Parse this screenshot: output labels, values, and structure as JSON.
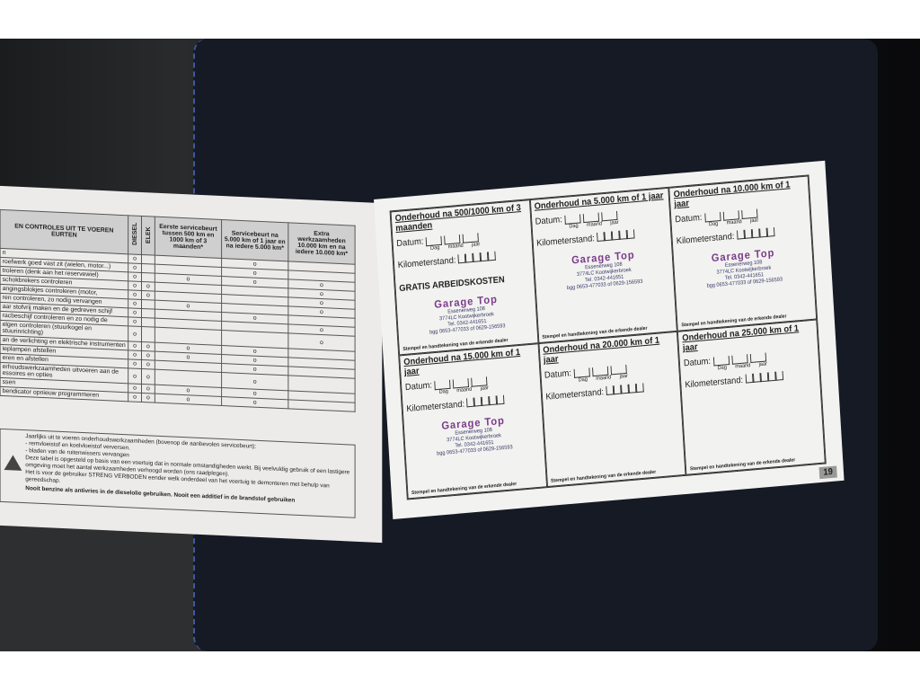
{
  "left_page": {
    "table": {
      "header": [
        "EN CONTROLES UIT TE VOEREN EURTEN",
        "DIESEL",
        "ELEK",
        "Eerste servicebeurt tussen 500 km en 1000 km of 3 maanden*",
        "Servicebeurt na 5.000 km of 1 jaar en na iedere 5.000 km*",
        "Extra werkzaamheden 10.000 km en na iedere 10.000 km*"
      ],
      "rows": [
        {
          "label": "n",
          "marks": [
            "o",
            null,
            null,
            "o",
            null
          ]
        },
        {
          "label": "roefwerk goed vast zit (wielen, motor...)",
          "marks": [
            "o",
            null,
            null,
            "o",
            null
          ]
        },
        {
          "label": "troleren (denk aan het reservewiel)",
          "marks": [
            "o",
            null,
            "o",
            "o",
            "o"
          ]
        },
        {
          "label": "schokbrekers controleren",
          "marks": [
            "o",
            "o",
            null,
            null,
            "o"
          ]
        },
        {
          "label": "angingsblokjes controleren (motor,",
          "marks": [
            "o",
            "o",
            null,
            null,
            "o"
          ]
        },
        {
          "label": "ren controleren, zo nodig vervangen",
          "marks": [
            "o",
            null,
            "o",
            null,
            "o"
          ]
        },
        {
          "label": "aar stofvrij maken en de gedreven schijf",
          "marks": [
            "o",
            null,
            null,
            "o",
            null
          ]
        },
        {
          "label": "racbeschijf controleren en zo nodig de",
          "marks": [
            "o",
            null,
            null,
            null,
            "o"
          ]
        },
        {
          "label": "elgen controleren (stuurkogel en stuurinrichting)",
          "marks": [
            "o",
            null,
            null,
            null,
            "o"
          ]
        },
        {
          "label": "an de verlichting en elektrische instrumenten",
          "marks": [
            "o",
            "o",
            "o",
            "o",
            null
          ]
        },
        {
          "label": "ieplampen afstellen",
          "marks": [
            "o",
            "o",
            "o",
            "o",
            null
          ]
        },
        {
          "label": "eren en afstellen",
          "marks": [
            "o",
            "o",
            null,
            "o",
            null
          ]
        },
        {
          "label": "erhoudswerkzaamheden uitvoeren aan de essoires en opties",
          "marks": [
            "o",
            "o",
            null,
            "o",
            null
          ]
        },
        {
          "label": "ssen",
          "marks": [
            "o",
            "o",
            "o",
            "o",
            null
          ]
        },
        {
          "label": "bendicator opnieuw programmeren",
          "marks": [
            "o",
            "o",
            "o",
            "o",
            null
          ]
        }
      ]
    },
    "notice": {
      "lines": [
        "Jaarlijks uit te voeren onderhoudswerkzaamheden (bovenop de aanbevolen servicebeurt):",
        "- remvloeistof en koelvloeistof verversen.",
        "- bladen van de ruitenwissers vervangen",
        "Deze tabel is opgesteld op basis van een voertuig dat in normale omstandigheden werkt. Bij veelvuldig gebruik of een lastigere omgeving moet het aantal werkzaamheden verhoogd worden (ons raadplegen).",
        "Het is voor de gebruiker STRENG VERBODEN eender welk onderdeel van het voertuig te demonteren met behulp van gereedschap."
      ],
      "footer": "Nooit benzine als antivries in de dieselolie gebruiken. Nooit een additief in de brandstof gebruiken"
    }
  },
  "right_page": {
    "date_label": "Datum:",
    "date_parts": [
      "Dag",
      "maand",
      "jaar"
    ],
    "km_label": "Kilometerstand:",
    "signature": "Stempel en handtekening van de erkende dealer",
    "stamp": {
      "name": "Garage Top",
      "lines": [
        "Essenerweg 108",
        "3774LC Kootwijkerbroek",
        "Tel. 0342-441651",
        "bgg 0653-477033 of 0629-156593"
      ]
    },
    "entries": [
      {
        "title": "Onderhoud na 500/1000 km of 3 maanden",
        "extra": "GRATIS ARBEIDSKOSTEN",
        "stamped": true
      },
      {
        "title": "Onderhoud na 5.000 km of 1 jaar",
        "stamped": true
      },
      {
        "title": "Onderhoud na 10.000 km of 1 jaar",
        "stamped": true
      },
      {
        "title": "Onderhoud na 15.000 km of 1 jaar",
        "stamped": true
      },
      {
        "title": "Onderhoud na 20.000 km of 1 jaar",
        "stamped": false
      },
      {
        "title": "Onderhoud na 25.000 km of 1 jaar",
        "stamped": false
      }
    ],
    "page_number": "19"
  }
}
